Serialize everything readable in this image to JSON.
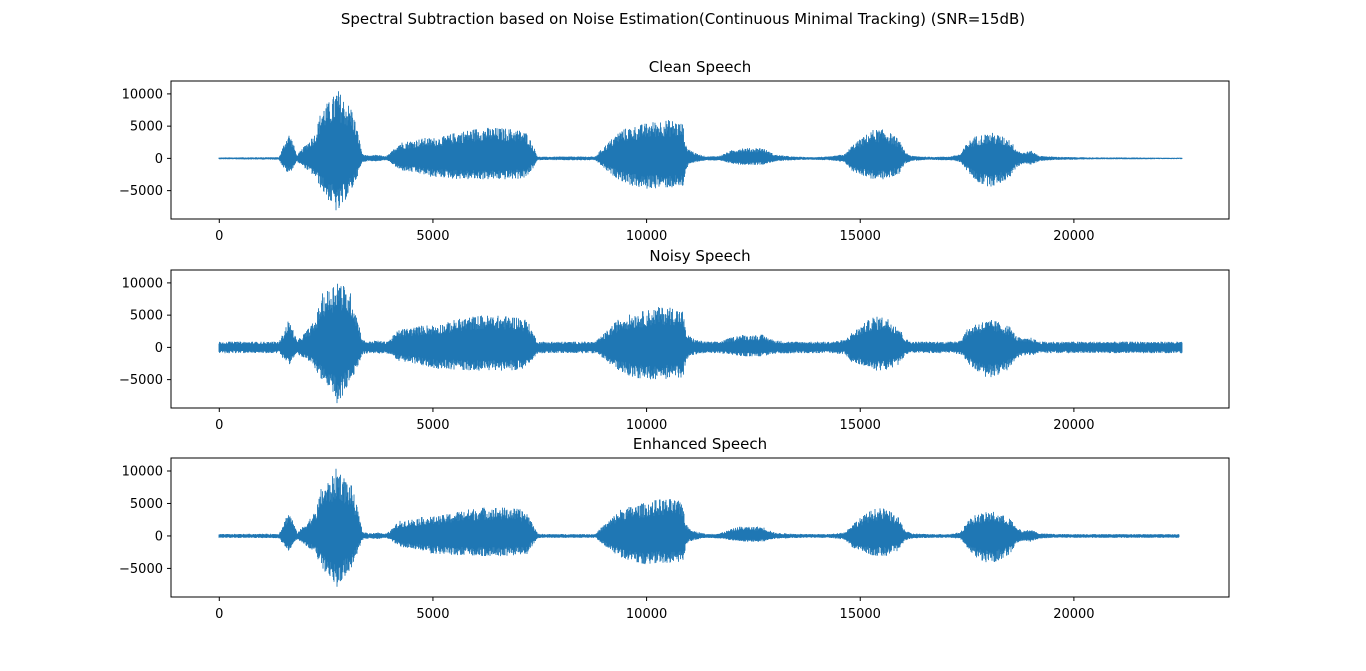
{
  "figure": {
    "suptitle": "Spectral Subtraction based on Noise Estimation(Continuous Minimal Tracking) (SNR=15dB)"
  },
  "colors": {
    "line": "#1f77b4",
    "axes": "#000000",
    "background": "#ffffff"
  },
  "chart_data": [
    {
      "type": "line",
      "title": "Clean Speech",
      "xlabel": "",
      "ylabel": "",
      "xlim": [
        -1130,
        23630
      ],
      "ylim": [
        -9400,
        12000
      ],
      "xticks": [
        0,
        5000,
        10000,
        15000,
        20000
      ],
      "yticks": [
        10000,
        5000,
        0,
        -5000
      ],
      "xtick_labels": [
        "0",
        "5000",
        "10000",
        "15000",
        "20000"
      ],
      "ytick_labels": [
        "10000",
        "5000",
        "0",
        "−5000"
      ],
      "grid": false,
      "legend": "none",
      "envelope": {
        "x": [
          0,
          1400,
          1500,
          1620,
          1700,
          1820,
          2000,
          2250,
          2400,
          2600,
          2700,
          2750,
          2850,
          2950,
          3100,
          3250,
          3350,
          3500,
          3700,
          3880,
          4000,
          4200,
          4500,
          4800,
          5000,
          5300,
          5500,
          5800,
          6100,
          6400,
          6700,
          7000,
          7200,
          7350,
          7450,
          7600,
          8000,
          8400,
          8800,
          8950,
          9100,
          9400,
          9700,
          10000,
          10300,
          10600,
          10850,
          10920,
          11000,
          11150,
          11400,
          11700,
          12000,
          12200,
          12400,
          12700,
          13000,
          13400,
          13800,
          14300,
          14650,
          14800,
          15000,
          15300,
          15600,
          15900,
          16050,
          16200,
          16600,
          17100,
          17350,
          17500,
          17700,
          17900,
          18100,
          18300,
          18500,
          18650,
          18800,
          19000,
          19200,
          19600,
          20000,
          20500,
          21000,
          21500,
          22000,
          22520
        ],
        "upper": [
          150,
          200,
          2000,
          4000,
          3000,
          500,
          2000,
          4000,
          8000,
          9000,
          10000,
          11000,
          10000,
          9000,
          8000,
          4000,
          700,
          400,
          600,
          300,
          800,
          2500,
          2800,
          3200,
          3200,
          3500,
          4000,
          4400,
          4800,
          4800,
          4700,
          4500,
          4000,
          2000,
          300,
          250,
          300,
          300,
          300,
          1500,
          2500,
          4500,
          5000,
          5500,
          6000,
          6000,
          5500,
          2000,
          1500,
          800,
          300,
          400,
          1300,
          1700,
          1600,
          1700,
          600,
          300,
          200,
          300,
          700,
          2000,
          3000,
          4500,
          4500,
          3000,
          1000,
          400,
          250,
          300,
          700,
          2500,
          3500,
          3800,
          4000,
          3500,
          3000,
          1500,
          900,
          1200,
          400,
          250,
          200,
          150,
          150,
          150,
          120,
          120
        ],
        "lower": [
          -150,
          -200,
          -1500,
          -2500,
          -1800,
          -500,
          -1500,
          -3000,
          -5000,
          -7000,
          -7500,
          -8800,
          -8000,
          -6500,
          -5000,
          -2500,
          -600,
          -400,
          -500,
          -300,
          -600,
          -1800,
          -2200,
          -2600,
          -3000,
          -3000,
          -3200,
          -3300,
          -3300,
          -3300,
          -3300,
          -3200,
          -3000,
          -1500,
          -300,
          -250,
          -300,
          -300,
          -300,
          -1200,
          -2200,
          -3500,
          -4400,
          -4800,
          -4600,
          -4600,
          -4500,
          -1800,
          -1000,
          -600,
          -300,
          -400,
          -800,
          -1000,
          -1000,
          -1000,
          -500,
          -300,
          -200,
          -300,
          -700,
          -2000,
          -2500,
          -3300,
          -3300,
          -2500,
          -800,
          -400,
          -250,
          -300,
          -600,
          -2000,
          -3500,
          -4300,
          -4400,
          -3800,
          -3000,
          -1500,
          -800,
          -1000,
          -400,
          -250,
          -200,
          -150,
          -150,
          -150,
          -120,
          -120
        ]
      }
    },
    {
      "type": "line",
      "title": "Noisy Speech",
      "xlabel": "",
      "ylabel": "",
      "xlim": [
        -1130,
        23630
      ],
      "ylim": [
        -9400,
        12000
      ],
      "xticks": [
        0,
        5000,
        10000,
        15000,
        20000
      ],
      "yticks": [
        10000,
        5000,
        0,
        -5000
      ],
      "xtick_labels": [
        "0",
        "5000",
        "10000",
        "15000",
        "20000"
      ],
      "ytick_labels": [
        "10000",
        "5000",
        "0",
        "−5000"
      ],
      "grid": false,
      "legend": "none",
      "envelope": {
        "x": [
          0,
          1400,
          1500,
          1620,
          1700,
          1820,
          2000,
          2250,
          2400,
          2600,
          2700,
          2750,
          2850,
          2950,
          3100,
          3250,
          3350,
          3500,
          3700,
          3880,
          4000,
          4200,
          4500,
          4800,
          5000,
          5300,
          5500,
          5800,
          6100,
          6400,
          6700,
          7000,
          7200,
          7350,
          7450,
          7600,
          8000,
          8400,
          8800,
          8950,
          9100,
          9400,
          9700,
          10000,
          10300,
          10600,
          10850,
          10920,
          11000,
          11150,
          11400,
          11700,
          12000,
          12200,
          12400,
          12700,
          13000,
          13400,
          13800,
          14300,
          14650,
          14800,
          15000,
          15300,
          15600,
          15900,
          16050,
          16200,
          16600,
          17100,
          17350,
          17500,
          17700,
          17900,
          18100,
          18300,
          18500,
          18650,
          18800,
          19000,
          19200,
          19600,
          20000,
          20500,
          21000,
          21500,
          22000,
          22520
        ],
        "upper": [
          900,
          900,
          2300,
          4300,
          3300,
          1000,
          2300,
          4300,
          8300,
          9300,
          10300,
          11200,
          10300,
          9300,
          8300,
          4300,
          1200,
          900,
          1100,
          900,
          1300,
          2800,
          3100,
          3500,
          3500,
          3800,
          4300,
          4700,
          5000,
          5000,
          4900,
          4800,
          4300,
          2300,
          900,
          900,
          900,
          900,
          900,
          1800,
          2800,
          4800,
          5300,
          5800,
          6300,
          6300,
          5800,
          2300,
          1800,
          1200,
          900,
          900,
          1600,
          2000,
          1900,
          2000,
          1100,
          900,
          900,
          900,
          1200,
          2300,
          3300,
          4800,
          4800,
          3300,
          1400,
          900,
          900,
          900,
          1200,
          2800,
          3800,
          4100,
          4300,
          3800,
          3300,
          1800,
          1300,
          1500,
          900,
          900,
          900,
          900,
          900,
          900,
          900,
          900
        ],
        "lower": [
          -900,
          -900,
          -1800,
          -2800,
          -2100,
          -1000,
          -1800,
          -3300,
          -5300,
          -7300,
          -7800,
          -8900,
          -8300,
          -6800,
          -5300,
          -2800,
          -1100,
          -900,
          -1000,
          -900,
          -1100,
          -2100,
          -2500,
          -2900,
          -3300,
          -3300,
          -3500,
          -3600,
          -3600,
          -3600,
          -3600,
          -3500,
          -3300,
          -1800,
          -900,
          -900,
          -900,
          -900,
          -900,
          -1500,
          -2500,
          -3800,
          -4700,
          -5100,
          -4900,
          -4900,
          -4800,
          -2100,
          -1300,
          -1100,
          -900,
          -900,
          -1200,
          -1400,
          -1400,
          -1400,
          -1000,
          -900,
          -900,
          -900,
          -1100,
          -2300,
          -2800,
          -3600,
          -3600,
          -2800,
          -1200,
          -900,
          -900,
          -900,
          -1100,
          -2300,
          -3800,
          -4600,
          -4700,
          -4100,
          -3300,
          -1800,
          -1200,
          -1300,
          -900,
          -900,
          -900,
          -900,
          -900,
          -900,
          -900,
          -900
        ]
      }
    },
    {
      "type": "line",
      "title": "Enhanced Speech",
      "xlabel": "",
      "ylabel": "",
      "xlim": [
        -1130,
        23630
      ],
      "ylim": [
        -9400,
        12000
      ],
      "xticks": [
        0,
        5000,
        10000,
        15000,
        20000
      ],
      "yticks": [
        10000,
        5000,
        0,
        -5000
      ],
      "xtick_labels": [
        "0",
        "5000",
        "10000",
        "15000",
        "20000"
      ],
      "ytick_labels": [
        "10000",
        "5000",
        "0",
        "−5000"
      ],
      "grid": false,
      "legend": "none",
      "envelope": {
        "x": [
          0,
          1400,
          1500,
          1620,
          1700,
          1820,
          2000,
          2250,
          2400,
          2600,
          2700,
          2750,
          2850,
          2950,
          3100,
          3250,
          3350,
          3500,
          3700,
          3880,
          4000,
          4200,
          4500,
          4800,
          5000,
          5300,
          5500,
          5800,
          6100,
          6400,
          6700,
          7000,
          7200,
          7350,
          7450,
          7600,
          8000,
          8400,
          8800,
          8950,
          9100,
          9400,
          9700,
          10000,
          10300,
          10600,
          10850,
          10920,
          11000,
          11150,
          11400,
          11700,
          12000,
          12200,
          12400,
          12700,
          13000,
          13400,
          13800,
          14300,
          14650,
          14800,
          15000,
          15300,
          15600,
          15900,
          16050,
          16200,
          16600,
          17100,
          17350,
          17500,
          17700,
          17900,
          18100,
          18300,
          18500,
          18650,
          18800,
          19000,
          19200,
          19600,
          20000,
          20500,
          21000,
          21500,
          22000,
          22450
        ],
        "upper": [
          300,
          350,
          2000,
          3800,
          2800,
          500,
          1800,
          3800,
          7800,
          8800,
          9700,
          10800,
          9800,
          8800,
          7800,
          3800,
          700,
          400,
          600,
          300,
          800,
          2300,
          2600,
          3000,
          3000,
          3300,
          3700,
          4100,
          4400,
          4500,
          4400,
          4200,
          3700,
          1800,
          350,
          300,
          300,
          300,
          300,
          1400,
          2300,
          4200,
          4700,
          5200,
          5700,
          5700,
          5200,
          1800,
          1300,
          700,
          300,
          400,
          1100,
          1500,
          1400,
          1500,
          500,
          350,
          300,
          300,
          600,
          1800,
          2800,
          4200,
          4300,
          2800,
          900,
          400,
          300,
          300,
          600,
          2300,
          3300,
          3600,
          3800,
          3300,
          2800,
          1300,
          800,
          1000,
          400,
          300,
          300,
          300,
          300,
          300,
          300,
          300
        ],
        "lower": [
          -300,
          -350,
          -1400,
          -2300,
          -1600,
          -500,
          -1300,
          -2800,
          -4800,
          -6800,
          -7200,
          -8300,
          -7700,
          -6200,
          -4800,
          -2300,
          -600,
          -400,
          -500,
          -300,
          -600,
          -1600,
          -2000,
          -2400,
          -2800,
          -2800,
          -3000,
          -3100,
          -3100,
          -3100,
          -3100,
          -3000,
          -2800,
          -1300,
          -350,
          -300,
          -300,
          -300,
          -300,
          -1100,
          -2000,
          -3300,
          -4200,
          -4500,
          -4300,
          -4300,
          -4200,
          -1600,
          -900,
          -600,
          -300,
          -400,
          -700,
          -900,
          -900,
          -900,
          -450,
          -350,
          -300,
          -300,
          -600,
          -1800,
          -2300,
          -3100,
          -3100,
          -2300,
          -700,
          -400,
          -300,
          -300,
          -500,
          -1800,
          -3300,
          -4000,
          -4200,
          -3600,
          -2800,
          -1300,
          -700,
          -900,
          -400,
          -300,
          -300,
          -300,
          -300,
          -300,
          -300,
          -300
        ]
      }
    }
  ]
}
